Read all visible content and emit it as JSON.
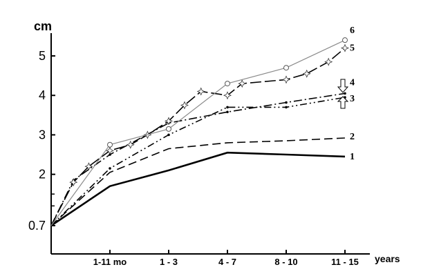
{
  "chart_data": {
    "type": "line",
    "ylabel": "cm",
    "xlabel": "years",
    "categories": [
      "1-11 mo",
      "1 - 3",
      "4 - 7",
      "8 - 10",
      "11 - 15"
    ],
    "y_ticks": [
      "0.7",
      "2",
      "3",
      "4",
      "5"
    ],
    "y_tick_values": [
      0.7,
      2,
      3,
      4,
      5
    ],
    "ylim": [
      0.7,
      5.6
    ],
    "x": [
      0,
      0.38,
      0.64,
      1,
      1.35,
      1.64,
      2,
      2.27,
      2.55,
      3,
      3.25,
      3.5,
      4,
      4.35,
      4.72,
      5
    ],
    "series": [
      {
        "name": "1",
        "style": "solid-thick",
        "color": "#000000",
        "values": [
          0.7,
          null,
          null,
          1.7,
          null,
          null,
          2.1,
          null,
          null,
          2.55,
          null,
          null,
          2.5,
          null,
          null,
          2.45
        ]
      },
      {
        "name": "2",
        "style": "dashed",
        "color": "#000000",
        "values": [
          0.7,
          null,
          null,
          2.05,
          null,
          null,
          2.65,
          null,
          null,
          2.8,
          null,
          null,
          2.85,
          null,
          null,
          2.92
        ]
      },
      {
        "name": "3",
        "style": "dash-dot-dot",
        "color": "#000000",
        "values": [
          0.7,
          null,
          null,
          2.15,
          null,
          null,
          3.0,
          null,
          null,
          3.7,
          null,
          null,
          3.7,
          null,
          null,
          3.95
        ]
      },
      {
        "name": "4",
        "style": "dash-dot",
        "color": "#000000",
        "values": [
          0.7,
          1.85,
          null,
          2.5,
          null,
          null,
          3.3,
          null,
          null,
          3.58,
          null,
          null,
          3.82,
          null,
          null,
          4.05
        ]
      },
      {
        "name": "5",
        "style": "long-dash-star",
        "color": "#000000",
        "values": [
          0.7,
          1.8,
          2.2,
          2.6,
          2.75,
          3.0,
          3.35,
          3.75,
          4.1,
          4.0,
          4.3,
          null,
          4.4,
          4.55,
          4.85,
          5.2
        ]
      },
      {
        "name": "6",
        "style": "thin-circle",
        "color": "#8a8a8a",
        "values": [
          0.7,
          null,
          null,
          2.75,
          null,
          null,
          3.15,
          null,
          null,
          4.3,
          null,
          null,
          4.7,
          null,
          null,
          5.4
        ]
      }
    ]
  }
}
